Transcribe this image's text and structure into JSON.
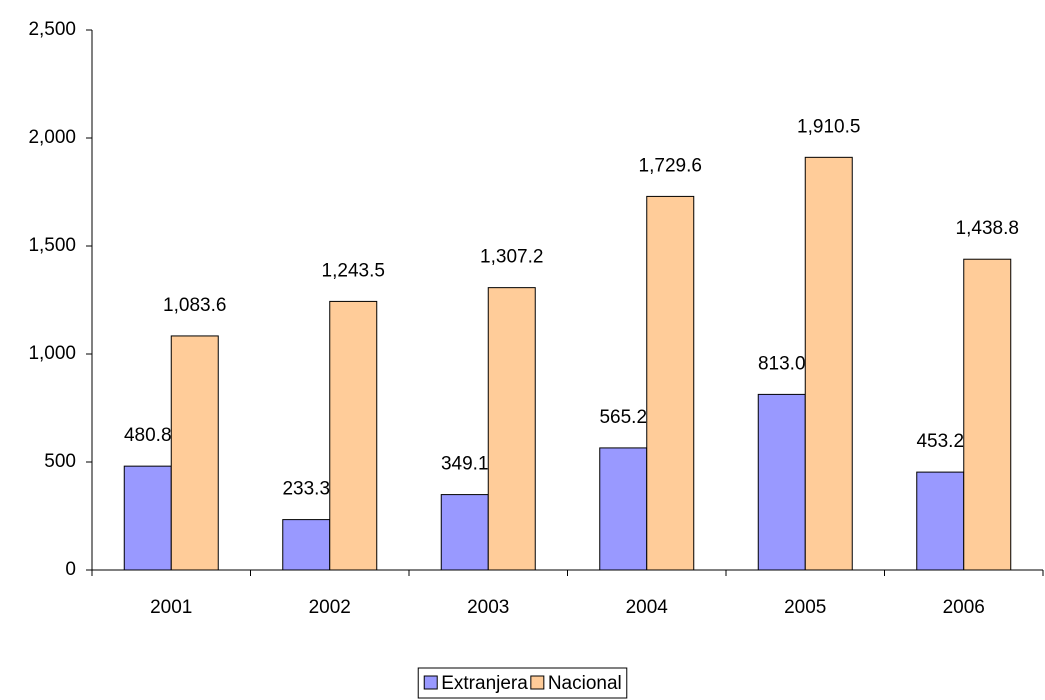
{
  "chart_data": {
    "type": "bar",
    "categories": [
      "2001",
      "2002",
      "2003",
      "2004",
      "2005",
      "2006"
    ],
    "series": [
      {
        "name": "Extranjera",
        "color": "#9999ff",
        "values": [
          480.8,
          233.3,
          349.1,
          565.2,
          813.0,
          453.2
        ],
        "value_labels": [
          "480.8",
          "233.3",
          "349.1",
          "565.2",
          "813.0",
          "453.2"
        ]
      },
      {
        "name": "Nacional",
        "color": "#ffcc99",
        "values": [
          1083.6,
          1243.5,
          1307.2,
          1729.6,
          1910.5,
          1438.8
        ],
        "value_labels": [
          "1,083.6",
          "1,243.5",
          "1,307.2",
          "1,729.6",
          "1,910.5",
          "1,438.8"
        ]
      }
    ],
    "ylim": [
      0,
      2500
    ],
    "yticks": [
      0,
      500,
      {
        "value": 1000,
        "label": "1,000"
      },
      {
        "value": 1500,
        "label": "1,500"
      },
      {
        "value": 2000,
        "label": "2,000"
      },
      {
        "value": 2500,
        "label": "2,500"
      }
    ],
    "grid": false,
    "legend": "bottom"
  }
}
